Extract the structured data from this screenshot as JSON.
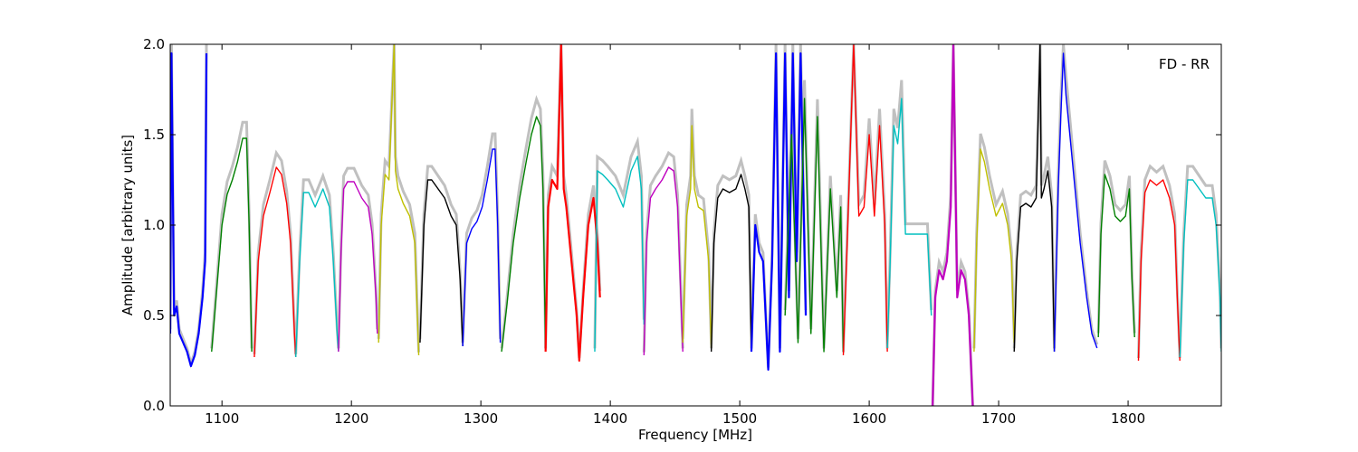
{
  "chart_data": {
    "type": "line",
    "title": "",
    "annotation": "FD - RR",
    "xlabel": "Frequency [MHz]",
    "ylabel": "Amplitude [arbitrary units]",
    "xlim": [
      1060,
      1872
    ],
    "ylim": [
      0.0,
      2.0
    ],
    "xticks": [
      1100,
      1200,
      1300,
      1400,
      1500,
      1600,
      1700,
      1800
    ],
    "xtick_labels": [
      "1100",
      "1200",
      "1300",
      "1400",
      "1500",
      "1600",
      "1700",
      "1800"
    ],
    "yticks": [
      0.0,
      0.5,
      1.0,
      1.5,
      2.0
    ],
    "ytick_labels": [
      "0.0",
      "0.5",
      "1.0",
      "1.5",
      "2.0"
    ],
    "grid": false,
    "background_color": "#c0c0c0",
    "series": [
      {
        "color": "#0000ff",
        "bold": true,
        "x": [
          1060,
          1061,
          1063,
          1065,
          1067,
          1070,
          1073,
          1076,
          1079,
          1082,
          1085,
          1087,
          1088
        ],
        "y": [
          0.4,
          1.95,
          0.5,
          0.55,
          0.4,
          0.35,
          0.3,
          0.22,
          0.28,
          0.4,
          0.6,
          0.8,
          1.95
        ]
      },
      {
        "color": "#008000",
        "x": [
          1092,
          1096,
          1100,
          1104,
          1108,
          1112,
          1116,
          1119,
          1121,
          1123
        ],
        "y": [
          0.3,
          0.65,
          1.0,
          1.17,
          1.25,
          1.35,
          1.48,
          1.48,
          1.0,
          0.3
        ]
      },
      {
        "color": "#ff0000",
        "x": [
          1125,
          1128,
          1132,
          1137,
          1142,
          1146,
          1150,
          1153,
          1156,
          1157
        ],
        "y": [
          0.27,
          0.8,
          1.05,
          1.18,
          1.32,
          1.28,
          1.12,
          0.9,
          0.4,
          0.27
        ]
      },
      {
        "color": "#00bfbf",
        "x": [
          1157,
          1160,
          1163,
          1167,
          1172,
          1178,
          1183,
          1186,
          1189,
          1190
        ],
        "y": [
          0.27,
          0.8,
          1.18,
          1.18,
          1.1,
          1.2,
          1.1,
          0.8,
          0.4,
          0.3
        ]
      },
      {
        "color": "#bf00bf",
        "x": [
          1190,
          1192,
          1194,
          1197,
          1202,
          1208,
          1213,
          1216,
          1219,
          1220
        ],
        "y": [
          0.3,
          0.85,
          1.2,
          1.24,
          1.24,
          1.15,
          1.1,
          0.95,
          0.6,
          0.4
        ]
      },
      {
        "color": "#bfbf00",
        "x": [
          1221,
          1223,
          1226,
          1229,
          1233,
          1234,
          1236,
          1240,
          1245,
          1249,
          1252
        ],
        "y": [
          0.35,
          1.0,
          1.28,
          1.25,
          2.0,
          1.3,
          1.2,
          1.12,
          1.05,
          0.9,
          0.28
        ]
      },
      {
        "color": "#000000",
        "x": [
          1253,
          1256,
          1259,
          1262,
          1267,
          1272,
          1277,
          1281,
          1284,
          1286
        ],
        "y": [
          0.35,
          1.0,
          1.25,
          1.25,
          1.2,
          1.15,
          1.05,
          1.0,
          0.7,
          0.33
        ]
      },
      {
        "color": "#0000ff",
        "x": [
          1286,
          1289,
          1293,
          1297,
          1301,
          1305,
          1309,
          1311,
          1313,
          1315
        ],
        "y": [
          0.33,
          0.9,
          0.98,
          1.02,
          1.1,
          1.25,
          1.42,
          1.42,
          1.0,
          0.35
        ]
      },
      {
        "color": "#008000",
        "x": [
          1316,
          1320,
          1325,
          1330,
          1335,
          1339,
          1343,
          1346,
          1348,
          1350
        ],
        "y": [
          0.3,
          0.55,
          0.9,
          1.15,
          1.35,
          1.5,
          1.6,
          1.55,
          1.2,
          0.3
        ]
      },
      {
        "color": "#ff0000",
        "bold": true,
        "x": [
          1350,
          1352,
          1355,
          1359,
          1362,
          1364,
          1366,
          1370,
          1374,
          1376,
          1379,
          1383,
          1387,
          1390,
          1392
        ],
        "y": [
          0.3,
          1.1,
          1.25,
          1.2,
          2.0,
          1.2,
          1.1,
          0.8,
          0.5,
          0.25,
          0.6,
          1.0,
          1.15,
          0.9,
          0.6
        ]
      },
      {
        "color": "#00bfbf",
        "x": [
          1388,
          1390,
          1394,
          1398,
          1404,
          1410,
          1416,
          1421,
          1424,
          1426
        ],
        "y": [
          0.3,
          1.3,
          1.28,
          1.25,
          1.2,
          1.1,
          1.3,
          1.38,
          1.2,
          0.45
        ]
      },
      {
        "color": "#bf00bf",
        "x": [
          1426,
          1428,
          1431,
          1435,
          1440,
          1445,
          1449,
          1452,
          1454,
          1456
        ],
        "y": [
          0.28,
          0.9,
          1.15,
          1.2,
          1.25,
          1.32,
          1.3,
          1.1,
          0.7,
          0.3
        ]
      },
      {
        "color": "#bfbf00",
        "x": [
          1456,
          1459,
          1462,
          1463,
          1465,
          1468,
          1472,
          1476,
          1478
        ],
        "y": [
          0.35,
          1.05,
          1.2,
          1.55,
          1.2,
          1.1,
          1.08,
          0.8,
          0.32
        ]
      },
      {
        "color": "#000000",
        "x": [
          1478,
          1480,
          1483,
          1487,
          1492,
          1497,
          1501,
          1504,
          1507,
          1509
        ],
        "y": [
          0.3,
          0.9,
          1.15,
          1.2,
          1.18,
          1.2,
          1.28,
          1.2,
          1.1,
          0.3
        ]
      },
      {
        "color": "#0000ff",
        "bold": true,
        "x": [
          1509,
          1512,
          1515,
          1518,
          1522,
          1525,
          1528,
          1531,
          1535,
          1538,
          1541,
          1544,
          1547,
          1551
        ],
        "y": [
          0.3,
          1.0,
          0.85,
          0.8,
          0.2,
          0.8,
          1.95,
          0.3,
          1.95,
          0.6,
          1.95,
          0.8,
          1.95,
          0.5
        ]
      },
      {
        "color": "#008000",
        "x": [
          1535,
          1540,
          1545,
          1550,
          1555,
          1560,
          1565,
          1570,
          1575,
          1578,
          1580
        ],
        "y": [
          0.5,
          1.5,
          0.35,
          1.7,
          0.4,
          1.6,
          0.3,
          1.2,
          0.6,
          1.1,
          0.3
        ]
      },
      {
        "color": "#ff0000",
        "x": [
          1580,
          1583,
          1588,
          1592,
          1596,
          1600,
          1604,
          1608,
          1612,
          1614
        ],
        "y": [
          0.28,
          0.9,
          2.0,
          1.05,
          1.1,
          1.5,
          1.05,
          1.55,
          1.0,
          0.3
        ]
      },
      {
        "color": "#00bfbf",
        "x": [
          1614,
          1616,
          1619,
          1622,
          1625,
          1628,
          1634,
          1640,
          1645,
          1648
        ],
        "y": [
          0.32,
          0.75,
          1.55,
          1.45,
          1.7,
          0.95,
          0.95,
          0.95,
          0.95,
          0.5
        ]
      },
      {
        "color": "#bf00bf",
        "bold": true,
        "x": [
          1649,
          1651,
          1654,
          1657,
          1660,
          1663,
          1665,
          1668,
          1671,
          1674,
          1677,
          1680
        ],
        "y": [
          0.0,
          0.6,
          0.75,
          0.7,
          0.8,
          1.1,
          2.0,
          0.6,
          0.75,
          0.7,
          0.5,
          0.0
        ]
      },
      {
        "color": "#bfbf00",
        "x": [
          1681,
          1683,
          1686,
          1689,
          1693,
          1698,
          1703,
          1707,
          1710,
          1712
        ],
        "y": [
          0.3,
          0.9,
          1.42,
          1.35,
          1.2,
          1.05,
          1.12,
          1.0,
          0.8,
          0.35
        ]
      },
      {
        "color": "#000000",
        "x": [
          1712,
          1714,
          1717,
          1721,
          1725,
          1729,
          1732,
          1733,
          1735,
          1738,
          1741,
          1743
        ],
        "y": [
          0.3,
          0.8,
          1.1,
          1.12,
          1.1,
          1.15,
          2.0,
          1.15,
          1.2,
          1.3,
          1.1,
          0.3
        ]
      },
      {
        "color": "#0000ff",
        "x": [
          1743,
          1746,
          1748,
          1750,
          1752,
          1755,
          1759,
          1763,
          1768,
          1772,
          1776
        ],
        "y": [
          0.3,
          1.2,
          1.6,
          1.95,
          1.72,
          1.5,
          1.2,
          0.9,
          0.6,
          0.4,
          0.32
        ]
      },
      {
        "color": "#008000",
        "x": [
          1777,
          1779,
          1782,
          1786,
          1790,
          1794,
          1798,
          1801,
          1803,
          1805
        ],
        "y": [
          0.38,
          0.95,
          1.28,
          1.2,
          1.05,
          1.02,
          1.05,
          1.2,
          0.7,
          0.38
        ]
      },
      {
        "color": "#ff0000",
        "x": [
          1808,
          1810,
          1813,
          1817,
          1822,
          1827,
          1832,
          1836,
          1838,
          1840
        ],
        "y": [
          0.25,
          0.8,
          1.18,
          1.25,
          1.22,
          1.25,
          1.15,
          1.0,
          0.6,
          0.25
        ]
      },
      {
        "color": "#00bfbf",
        "x": [
          1840,
          1843,
          1846,
          1850,
          1855,
          1860,
          1865,
          1868,
          1871,
          1872
        ],
        "y": [
          0.27,
          0.9,
          1.25,
          1.25,
          1.2,
          1.15,
          1.15,
          1.0,
          0.6,
          0.3
        ]
      }
    ]
  }
}
